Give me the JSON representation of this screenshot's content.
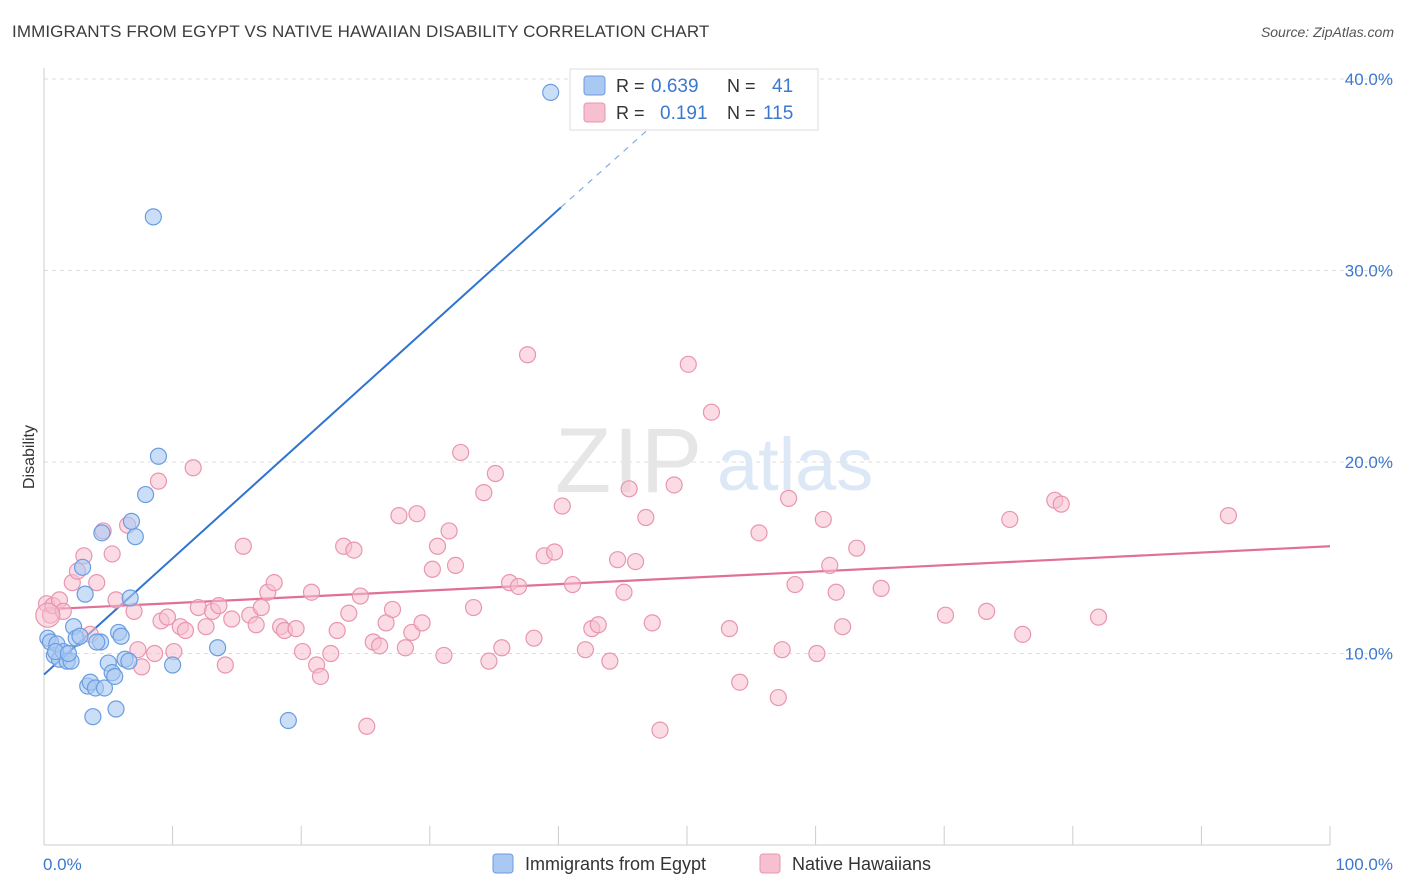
{
  "header": {
    "title": "IMMIGRANTS FROM EGYPT VS NATIVE HAWAIIAN DISABILITY CORRELATION CHART",
    "source": "Source: ZipAtlas.com"
  },
  "watermark": {
    "zip": "ZIP",
    "atlas": "atlas"
  },
  "stats": {
    "series1": {
      "r_label": "R =",
      "r_value": "0.639",
      "n_label": "N =",
      "n_value": "41"
    },
    "series2": {
      "r_label": "R =",
      "r_value": "0.191",
      "n_label": "N =",
      "n_value": "115"
    }
  },
  "colors": {
    "blue_fill": "#a9c8f2",
    "blue_stroke": "#6a9de0",
    "blue_line": "#2f74d0",
    "pink_fill": "#f7c0d0",
    "pink_stroke": "#e995b0",
    "pink_line": "#e0709a",
    "axis_text": "#3b78d0",
    "grid": "#dddddd"
  },
  "chart_data": {
    "type": "scatter",
    "xlabel": "",
    "ylabel": "Disability",
    "xlim": [
      0,
      100
    ],
    "ylim": [
      0,
      40
    ],
    "x_tick_labels": [
      "0.0%",
      "100.0%"
    ],
    "y_ticks": [
      10,
      20,
      30,
      40
    ],
    "y_tick_labels": [
      "10.0%",
      "20.0%",
      "30.0%",
      "40.0%"
    ],
    "grid": true,
    "legend_position": "bottom-center",
    "series": [
      {
        "name": "Immigrants from Egypt",
        "color": "#a9c8f2",
        "trend": {
          "x": [
            0,
            40.2
          ],
          "y": [
            8.9,
            33.3
          ],
          "dashed_to": [
            47.2,
            37.5
          ]
        },
        "points": [
          [
            0.3,
            10.8
          ],
          [
            0.5,
            10.6
          ],
          [
            0.8,
            9.9
          ],
          [
            1.0,
            10.5
          ],
          [
            1.2,
            9.7
          ],
          [
            1.5,
            10.1
          ],
          [
            1.8,
            9.6
          ],
          [
            2.1,
            9.6
          ],
          [
            2.3,
            11.4
          ],
          [
            2.5,
            10.8
          ],
          [
            2.8,
            10.9
          ],
          [
            3.0,
            14.5
          ],
          [
            3.2,
            13.1
          ],
          [
            3.4,
            8.3
          ],
          [
            3.6,
            8.5
          ],
          [
            3.8,
            6.7
          ],
          [
            4.0,
            8.2
          ],
          [
            4.4,
            10.6
          ],
          [
            4.5,
            16.3
          ],
          [
            4.7,
            8.2
          ],
          [
            5.0,
            9.5
          ],
          [
            5.3,
            9.0
          ],
          [
            5.5,
            8.8
          ],
          [
            5.6,
            7.1
          ],
          [
            5.8,
            11.1
          ],
          [
            6.0,
            10.9
          ],
          [
            6.3,
            9.7
          ],
          [
            6.6,
            9.6
          ],
          [
            6.7,
            12.9
          ],
          [
            6.8,
            16.9
          ],
          [
            7.1,
            16.1
          ],
          [
            7.9,
            18.3
          ],
          [
            8.5,
            32.8
          ],
          [
            8.9,
            20.3
          ],
          [
            10.0,
            9.4
          ],
          [
            13.5,
            10.3
          ],
          [
            19.0,
            6.5
          ],
          [
            39.4,
            39.3
          ],
          [
            0.9,
            10.1
          ],
          [
            1.9,
            10.0
          ],
          [
            4.1,
            10.6
          ]
        ]
      },
      {
        "name": "Native Hawaiians",
        "color": "#f7c0d0",
        "trend": {
          "x": [
            0,
            100
          ],
          "y": [
            12.3,
            15.6
          ]
        },
        "points": [
          [
            0.2,
            12.6
          ],
          [
            0.5,
            12.0
          ],
          [
            0.7,
            12.5
          ],
          [
            1.2,
            12.8
          ],
          [
            1.5,
            12.2
          ],
          [
            2.2,
            13.7
          ],
          [
            2.6,
            14.3
          ],
          [
            3.1,
            15.1
          ],
          [
            3.6,
            11.0
          ],
          [
            4.1,
            13.7
          ],
          [
            4.6,
            16.4
          ],
          [
            5.3,
            15.2
          ],
          [
            5.6,
            12.8
          ],
          [
            6.5,
            16.7
          ],
          [
            7.0,
            12.2
          ],
          [
            7.3,
            10.2
          ],
          [
            7.6,
            9.3
          ],
          [
            8.6,
            10.0
          ],
          [
            8.9,
            19.0
          ],
          [
            9.1,
            11.7
          ],
          [
            9.6,
            11.9
          ],
          [
            10.1,
            10.1
          ],
          [
            10.6,
            11.4
          ],
          [
            11.0,
            11.2
          ],
          [
            11.6,
            19.7
          ],
          [
            12.0,
            12.4
          ],
          [
            12.6,
            11.4
          ],
          [
            13.1,
            12.2
          ],
          [
            13.6,
            12.5
          ],
          [
            14.1,
            9.4
          ],
          [
            14.6,
            11.8
          ],
          [
            15.5,
            15.6
          ],
          [
            16.0,
            12.0
          ],
          [
            16.5,
            11.5
          ],
          [
            16.9,
            12.4
          ],
          [
            17.4,
            13.2
          ],
          [
            17.9,
            13.7
          ],
          [
            18.4,
            11.4
          ],
          [
            18.7,
            11.2
          ],
          [
            19.6,
            11.3
          ],
          [
            20.1,
            10.1
          ],
          [
            20.8,
            13.2
          ],
          [
            21.2,
            9.4
          ],
          [
            21.5,
            8.8
          ],
          [
            22.3,
            10.0
          ],
          [
            22.8,
            11.2
          ],
          [
            23.3,
            15.6
          ],
          [
            23.7,
            12.1
          ],
          [
            24.1,
            15.4
          ],
          [
            24.6,
            13.0
          ],
          [
            25.1,
            6.2
          ],
          [
            25.6,
            10.6
          ],
          [
            26.1,
            10.4
          ],
          [
            26.6,
            11.6
          ],
          [
            27.1,
            12.3
          ],
          [
            27.6,
            17.2
          ],
          [
            28.1,
            10.3
          ],
          [
            28.6,
            11.1
          ],
          [
            29.0,
            17.3
          ],
          [
            29.4,
            11.6
          ],
          [
            30.2,
            14.4
          ],
          [
            30.6,
            15.6
          ],
          [
            31.1,
            9.9
          ],
          [
            31.5,
            16.4
          ],
          [
            32.0,
            14.6
          ],
          [
            32.4,
            20.5
          ],
          [
            33.4,
            12.4
          ],
          [
            34.2,
            18.4
          ],
          [
            34.6,
            9.6
          ],
          [
            35.1,
            19.4
          ],
          [
            35.6,
            10.3
          ],
          [
            36.2,
            13.7
          ],
          [
            36.9,
            13.5
          ],
          [
            37.6,
            25.6
          ],
          [
            38.1,
            10.8
          ],
          [
            38.9,
            15.1
          ],
          [
            39.7,
            15.3
          ],
          [
            40.3,
            17.7
          ],
          [
            41.1,
            13.6
          ],
          [
            42.1,
            10.2
          ],
          [
            42.6,
            11.3
          ],
          [
            43.1,
            11.5
          ],
          [
            44.0,
            9.6
          ],
          [
            44.6,
            14.9
          ],
          [
            45.1,
            13.2
          ],
          [
            45.5,
            18.6
          ],
          [
            46.0,
            14.8
          ],
          [
            46.8,
            17.1
          ],
          [
            47.3,
            11.6
          ],
          [
            47.9,
            6.0
          ],
          [
            49.0,
            18.8
          ],
          [
            50.1,
            25.1
          ],
          [
            51.9,
            22.6
          ],
          [
            53.3,
            11.3
          ],
          [
            54.1,
            8.5
          ],
          [
            55.6,
            16.3
          ],
          [
            57.1,
            7.7
          ],
          [
            57.4,
            10.2
          ],
          [
            57.9,
            18.1
          ],
          [
            58.4,
            13.6
          ],
          [
            60.1,
            10.0
          ],
          [
            60.6,
            17.0
          ],
          [
            61.1,
            14.6
          ],
          [
            61.6,
            13.2
          ],
          [
            62.1,
            11.4
          ],
          [
            63.2,
            15.5
          ],
          [
            65.1,
            13.4
          ],
          [
            70.1,
            12.0
          ],
          [
            73.3,
            12.2
          ],
          [
            75.1,
            17.0
          ],
          [
            76.1,
            11.0
          ],
          [
            78.6,
            18.0
          ],
          [
            79.1,
            17.8
          ],
          [
            82.0,
            11.9
          ],
          [
            92.1,
            17.2
          ]
        ]
      }
    ]
  },
  "legend": {
    "items": [
      "Immigrants from Egypt",
      "Native Hawaiians"
    ]
  }
}
